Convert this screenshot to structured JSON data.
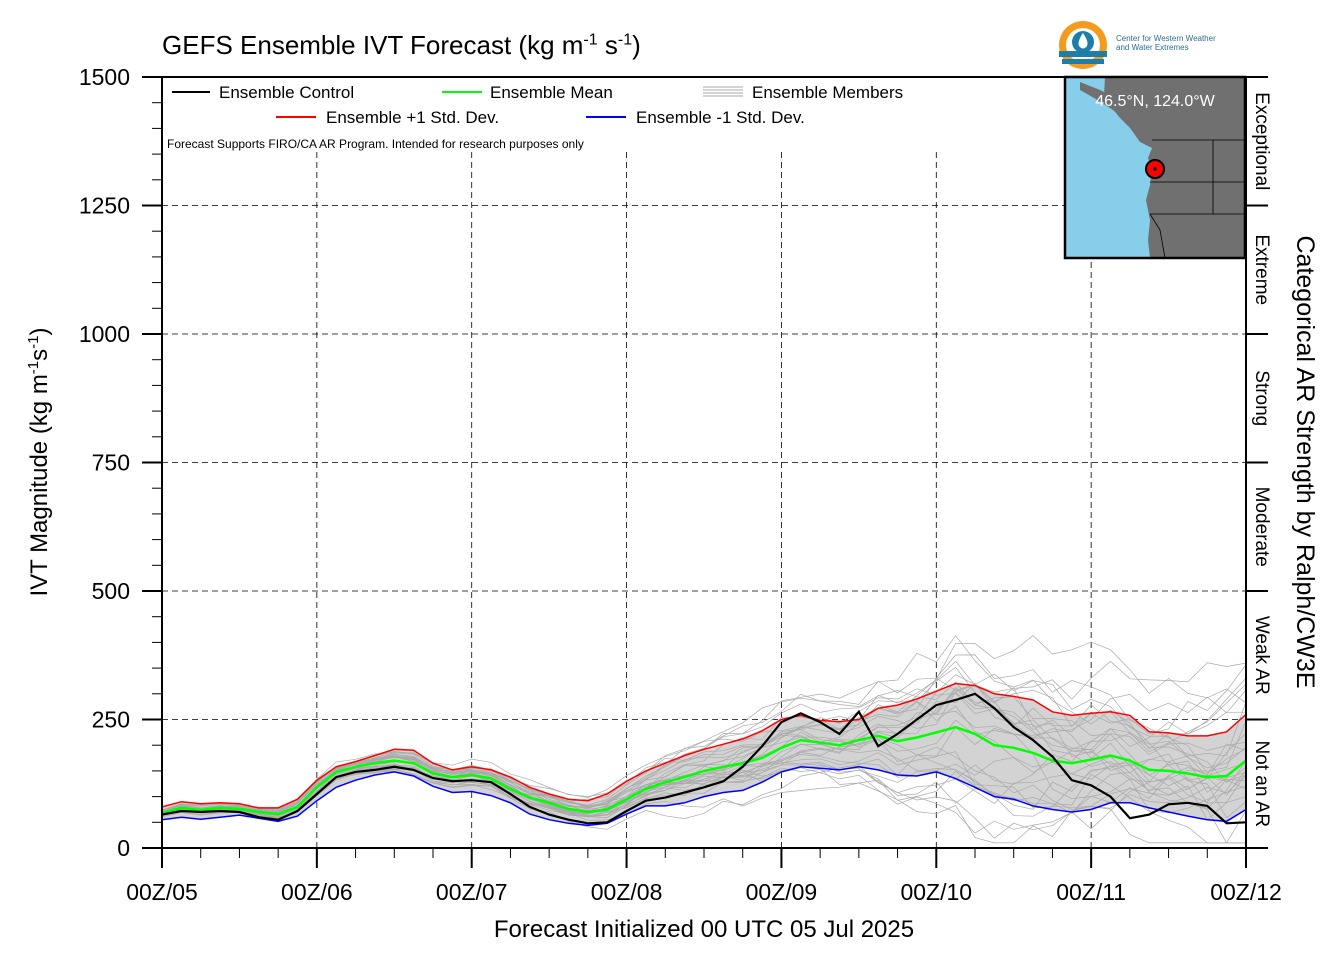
{
  "chart_data": {
    "type": "line",
    "title": "GEFS Ensemble IVT Forecast (kg m",
    "title_units": [
      "-1",
      " s",
      "-1",
      ")"
    ],
    "ylabel": "IVT Magnitude (kg m",
    "ylabel_units": [
      "-1",
      "s",
      "-1",
      ")"
    ],
    "xlabel": "Forecast Initialized 00 UTC 05 Jul 2025",
    "right_label": "Categorical AR Strength by Ralph/CW3E",
    "ylim": [
      0,
      1500
    ],
    "yticks": [
      0,
      250,
      500,
      750,
      1000,
      1250,
      1500
    ],
    "xlim": [
      0,
      168
    ],
    "xtick_hours": [
      0,
      24,
      48,
      72,
      96,
      120,
      144,
      168
    ],
    "xtick_labels": [
      "00Z/05",
      "00Z/06",
      "00Z/07",
      "00Z/08",
      "00Z/09",
      "00Z/10",
      "00Z/11",
      "00Z/12"
    ],
    "categories": [
      {
        "label": "Not an AR",
        "range": [
          0,
          250
        ]
      },
      {
        "label": "Weak AR",
        "range": [
          250,
          500
        ]
      },
      {
        "label": "Moderate",
        "range": [
          500,
          750
        ]
      },
      {
        "label": "Strong",
        "range": [
          750,
          1000
        ]
      },
      {
        "label": "Extreme",
        "range": [
          1000,
          1250
        ]
      },
      {
        "label": "Exceptional",
        "range": [
          1250,
          1500
        ]
      }
    ],
    "legend": {
      "control": "Ensemble Control",
      "mean": "Ensemble Mean",
      "members": "Ensemble Members",
      "plus_std": "Ensemble +1 Std. Dev.",
      "minus_std": "Ensemble -1 Std. Dev."
    },
    "note": "Forecast Supports FIRO/CA AR Program. Intended for research purposes only",
    "location_label": "46.5°N, 124.0°W",
    "colors": {
      "control": "#000000",
      "mean": "#00ff00",
      "plus_std": "#ff0000",
      "minus_std": "#0000ff",
      "members": "#aaaaaa",
      "spread": "#d3d3d3",
      "ocean": "#87ceeb",
      "land": "#707070"
    },
    "grid": true,
    "x": [
      0,
      3,
      6,
      9,
      12,
      15,
      18,
      21,
      24,
      27,
      30,
      33,
      36,
      39,
      42,
      45,
      48,
      51,
      54,
      57,
      60,
      63,
      66,
      69,
      72,
      75,
      78,
      81,
      84,
      87,
      90,
      93,
      96,
      99,
      102,
      105,
      108,
      111,
      114,
      117,
      120,
      123,
      126,
      129,
      132,
      135,
      138,
      141,
      144,
      147,
      150,
      153,
      156,
      159,
      162,
      165,
      168
    ],
    "series": [
      {
        "name": "Ensemble Control",
        "values": [
          65,
          72,
          70,
          72,
          70,
          60,
          55,
          72,
          105,
          138,
          148,
          152,
          158,
          152,
          136,
          130,
          132,
          128,
          105,
          80,
          65,
          55,
          48,
          50,
          72,
          92,
          98,
          108,
          118,
          130,
          158,
          198,
          245,
          262,
          245,
          222,
          265,
          198,
          222,
          250,
          278,
          288,
          300,
          272,
          235,
          210,
          178,
          132,
          122,
          100,
          58,
          65,
          85,
          88,
          82,
          48,
          50
        ]
      },
      {
        "name": "Ensemble Mean",
        "values": [
          68,
          78,
          74,
          78,
          76,
          70,
          66,
          80,
          118,
          148,
          158,
          165,
          170,
          165,
          145,
          138,
          142,
          135,
          115,
          98,
          88,
          76,
          70,
          75,
          95,
          115,
          128,
          138,
          150,
          158,
          165,
          175,
          195,
          210,
          205,
          200,
          210,
          218,
          208,
          215,
          225,
          235,
          222,
          200,
          195,
          185,
          170,
          165,
          172,
          180,
          170,
          152,
          150,
          145,
          138,
          140,
          170
        ]
      },
      {
        "name": "Ensemble +1 Std. Dev.",
        "values": [
          80,
          90,
          86,
          88,
          86,
          78,
          78,
          95,
          132,
          158,
          168,
          180,
          192,
          190,
          165,
          152,
          158,
          152,
          138,
          118,
          105,
          95,
          92,
          105,
          130,
          150,
          165,
          180,
          192,
          202,
          212,
          228,
          250,
          258,
          248,
          246,
          250,
          272,
          278,
          290,
          305,
          320,
          316,
          300,
          295,
          288,
          265,
          258,
          262,
          265,
          258,
          226,
          224,
          218,
          218,
          226,
          260
        ]
      },
      {
        "name": "Ensemble -1 Std. Dev.",
        "values": [
          55,
          60,
          56,
          60,
          64,
          58,
          52,
          62,
          92,
          118,
          132,
          142,
          148,
          140,
          120,
          108,
          110,
          102,
          88,
          66,
          55,
          48,
          44,
          48,
          66,
          82,
          82,
          88,
          100,
          108,
          112,
          128,
          148,
          158,
          155,
          152,
          158,
          152,
          142,
          140,
          148,
          135,
          118,
          100,
          95,
          82,
          75,
          70,
          75,
          88,
          88,
          78,
          70,
          62,
          55,
          52,
          75
        ]
      }
    ]
  }
}
